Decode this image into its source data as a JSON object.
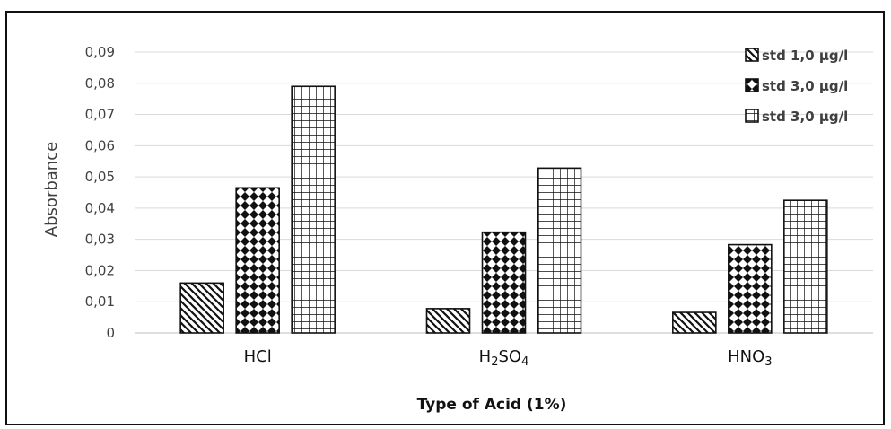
{
  "chart_data": {
    "type": "bar",
    "title": "",
    "xlabel": "Type of Acid (1%)",
    "ylabel": "Absorbance",
    "ylim": [
      0,
      0.09
    ],
    "yticks": [
      "0",
      "0,01",
      "0,02",
      "0,03",
      "0,04",
      "0,05",
      "0,06",
      "0,07",
      "0,08",
      "0,09"
    ],
    "ytick_values": [
      0,
      0.01,
      0.02,
      0.03,
      0.04,
      0.05,
      0.06,
      0.07,
      0.08,
      0.09
    ],
    "categories": [
      {
        "main": "HCl",
        "parts": [
          {
            "t": "HCl",
            "sub": false
          }
        ]
      },
      {
        "main": "H2SO4",
        "parts": [
          {
            "t": "H",
            "sub": false
          },
          {
            "t": "2",
            "sub": true
          },
          {
            "t": "SO",
            "sub": false
          },
          {
            "t": "4",
            "sub": true
          }
        ]
      },
      {
        "main": "HNO3",
        "parts": [
          {
            "t": "HNO",
            "sub": false
          },
          {
            "t": "3",
            "sub": true
          }
        ]
      }
    ],
    "series": [
      {
        "name": "std 1,0 µg/l",
        "pattern": "diagonal",
        "values": [
          0.016,
          0.0078,
          0.0066
        ]
      },
      {
        "name": "std 3,0 µg/l",
        "pattern": "checker",
        "values": [
          0.0465,
          0.0323,
          0.0283
        ]
      },
      {
        "name": "std 3,0 µg/l",
        "pattern": "grid",
        "values": [
          0.079,
          0.0528,
          0.0425
        ]
      }
    ],
    "grid": true,
    "legend_position": "top-right"
  }
}
